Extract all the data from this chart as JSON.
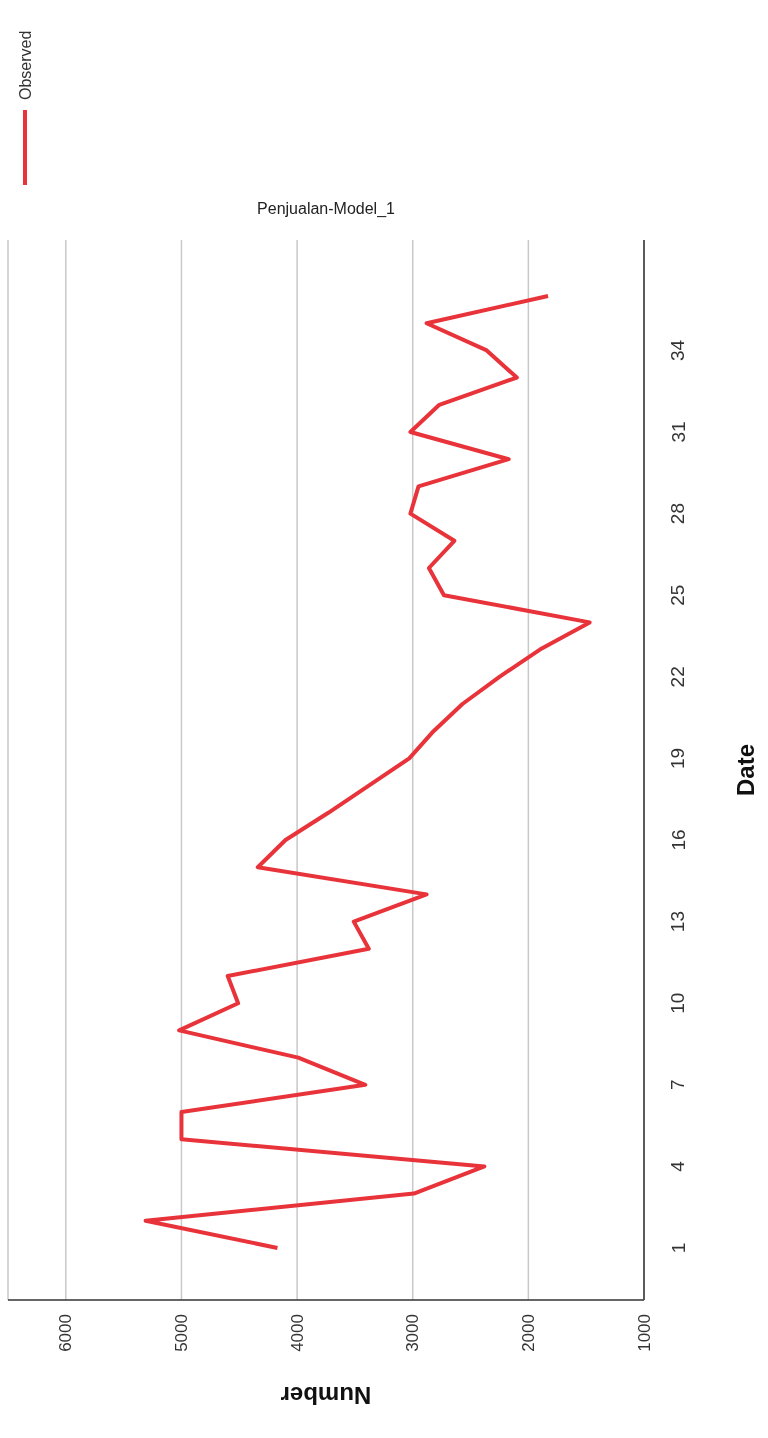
{
  "chart_data": {
    "type": "line",
    "orientation": "horizontal",
    "title": "Penjualan-Model_1",
    "xlabel": "Number",
    "ylabel": "Date",
    "categories": [
      null,
      null,
      "34",
      null,
      null,
      "31",
      null,
      null,
      "28",
      null,
      null,
      "25",
      null,
      null,
      "22",
      null,
      null,
      "19",
      null,
      null,
      "16",
      null,
      null,
      "13",
      null,
      null,
      "10",
      null,
      null,
      "7",
      null,
      null,
      "4",
      null,
      null,
      "1"
    ],
    "series": [
      {
        "name": "Observed",
        "color": "#e8333a",
        "values": [
          1830,
          2880,
          2360,
          2100,
          2770,
          3020,
          2170,
          2950,
          3020,
          2640,
          2860,
          2730,
          1470,
          1900,
          2250,
          2570,
          2820,
          3030,
          3380,
          3730,
          4100,
          4340,
          2880,
          3510,
          3380,
          4600,
          4510,
          5020,
          3990,
          3410,
          5000,
          5000,
          2380,
          2990,
          5310,
          4170
        ]
      }
    ],
    "xlim": [
      6500,
      1000
    ],
    "xticks": [
      1000,
      2000,
      3000,
      4000,
      5000,
      6000
    ],
    "grid": "x",
    "legend": "top left"
  }
}
